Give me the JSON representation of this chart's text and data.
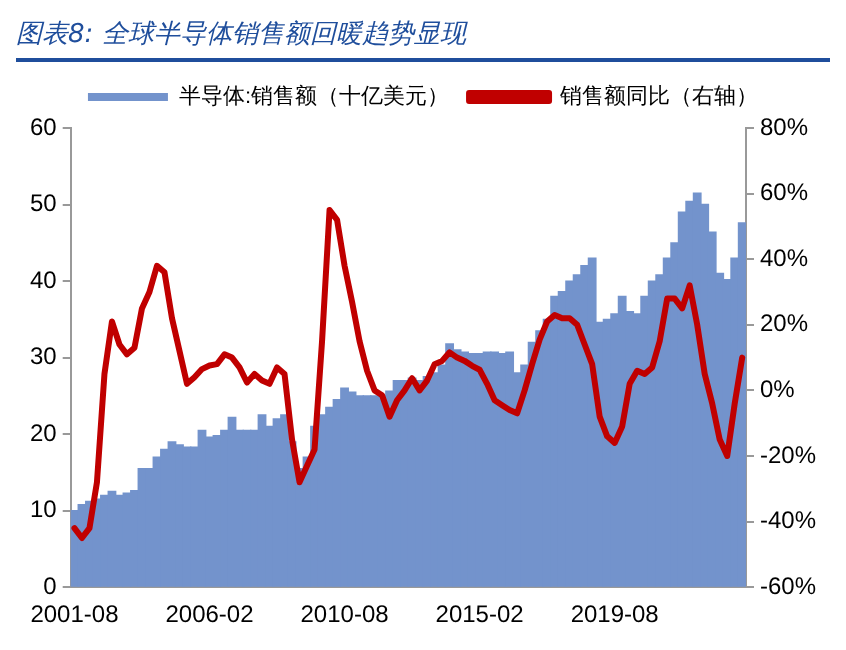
{
  "chart_data": {
    "type": "bar",
    "title": "图表8: 全球半导体销售额回暖趋势显现",
    "categories": [
      "2001-08",
      null,
      null,
      null,
      null,
      null,
      null,
      null,
      null,
      null,
      null,
      null,
      null,
      null,
      null,
      null,
      null,
      null,
      "2006-02",
      null,
      null,
      null,
      null,
      null,
      null,
      null,
      null,
      null,
      null,
      null,
      null,
      null,
      null,
      null,
      null,
      null,
      "2010-08",
      null,
      null,
      null,
      null,
      null,
      null,
      null,
      null,
      null,
      null,
      null,
      null,
      null,
      null,
      null,
      null,
      null,
      "2015-02",
      null,
      null,
      null,
      null,
      null,
      null,
      null,
      null,
      null,
      null,
      null,
      null,
      null,
      null,
      null,
      null,
      null,
      "2019-08",
      null,
      null,
      null,
      null,
      null,
      null,
      null,
      null,
      null,
      null,
      null,
      null,
      null,
      null,
      null,
      null,
      null
    ],
    "series": [
      {
        "name": "半导体:销售额（十亿美元）",
        "color": "#7393cc",
        "values": [
          10,
          10.8,
          11.2,
          11.5,
          12,
          12.5,
          12,
          12.3,
          12.6,
          15.5,
          15.5,
          17,
          18,
          19,
          18.6,
          18.3,
          18.3,
          20.5,
          19.6,
          19.8,
          20.5,
          22.2,
          20.5,
          20.5,
          20.5,
          22.5,
          21,
          22,
          22.5,
          19,
          15.5,
          17,
          21,
          22.5,
          23.5,
          24.5,
          26,
          25.5,
          25,
          25,
          25,
          25,
          25.6,
          27,
          27,
          27.3,
          27,
          27.5,
          28,
          29,
          31.8,
          31,
          30.7,
          30.5,
          30.5,
          30.7,
          30.7,
          30.5,
          30.7,
          28,
          29,
          32,
          33.5,
          35,
          38,
          38.6,
          40,
          40.8,
          42,
          43,
          34.6,
          35,
          35.7,
          38,
          36,
          35.7,
          38,
          40,
          40.8,
          43,
          45,
          49,
          50.4,
          51.5,
          50,
          46.4,
          41,
          40.2,
          43,
          47.6
        ]
      },
      {
        "name": "销售额同比（右轴）",
        "type": "line",
        "axis": "y2",
        "color": "#c00000",
        "values": [
          -42,
          -45,
          -42,
          -28,
          5,
          21,
          14,
          11,
          13,
          25,
          30,
          38,
          36,
          22,
          12,
          2,
          4,
          6.5,
          7.6,
          8,
          11,
          10,
          7,
          2.4,
          5,
          3,
          2,
          7,
          5,
          -15,
          -28,
          -23,
          -18,
          15,
          55,
          52,
          38,
          27,
          15,
          6,
          0,
          -1.5,
          -8,
          -3,
          0,
          3.7,
          0,
          3,
          8,
          9,
          11.6,
          10,
          9,
          7.5,
          6.3,
          2,
          -3,
          -4.5,
          -6,
          -7,
          0,
          8,
          15.5,
          21,
          23,
          22,
          22,
          20,
          14,
          8,
          -8,
          -14,
          -16,
          -11,
          2,
          6,
          5,
          7,
          15,
          28,
          28,
          25,
          32,
          20,
          5,
          -4,
          -15,
          -20,
          -4,
          10
        ]
      }
    ],
    "ylim": [
      0,
      60
    ],
    "yticks": [
      0,
      10,
      20,
      30,
      40,
      50,
      60
    ],
    "y2lim": [
      -60,
      80
    ],
    "y2ticks": [
      {
        "value": -60,
        "label": "-60%"
      },
      {
        "value": -40,
        "label": "-40%"
      },
      {
        "value": -20,
        "label": "-20%"
      },
      {
        "value": 0,
        "label": "0%"
      },
      {
        "value": 20,
        "label": "20%"
      },
      {
        "value": 40,
        "label": "40%"
      },
      {
        "value": 60,
        "label": "60%"
      },
      {
        "value": 80,
        "label": "80%"
      }
    ],
    "legend": "top",
    "grid": false,
    "marker": "none",
    "line_style": "solid"
  }
}
